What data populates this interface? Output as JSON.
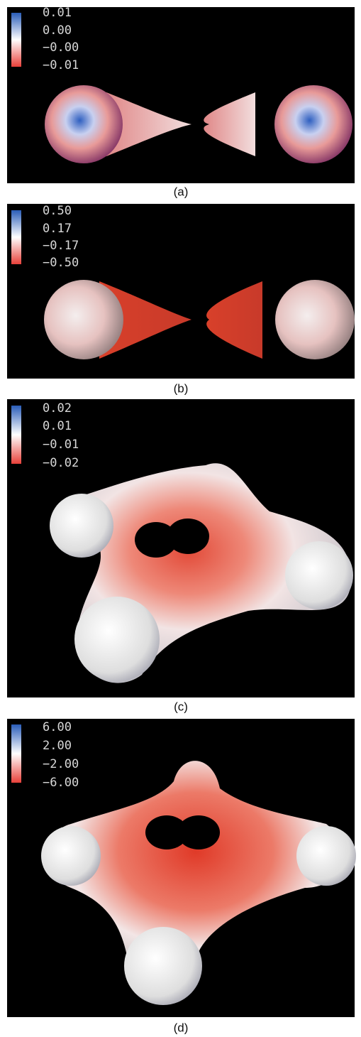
{
  "panels": [
    {
      "legend": [
        "0.01",
        "0.00",
        "−0.00",
        "−0.01"
      ],
      "caption": "(a)"
    },
    {
      "legend": [
        "0.50",
        "0.17",
        "−0.17",
        "−0.50"
      ],
      "caption": "(b)"
    },
    {
      "legend": [
        "0.02",
        "0.01",
        "−0.01",
        "−0.02"
      ],
      "caption": "(c)"
    },
    {
      "legend": [
        "6.00",
        "2.00",
        "−2.00",
        "−6.00"
      ],
      "caption": "(d)"
    }
  ]
}
